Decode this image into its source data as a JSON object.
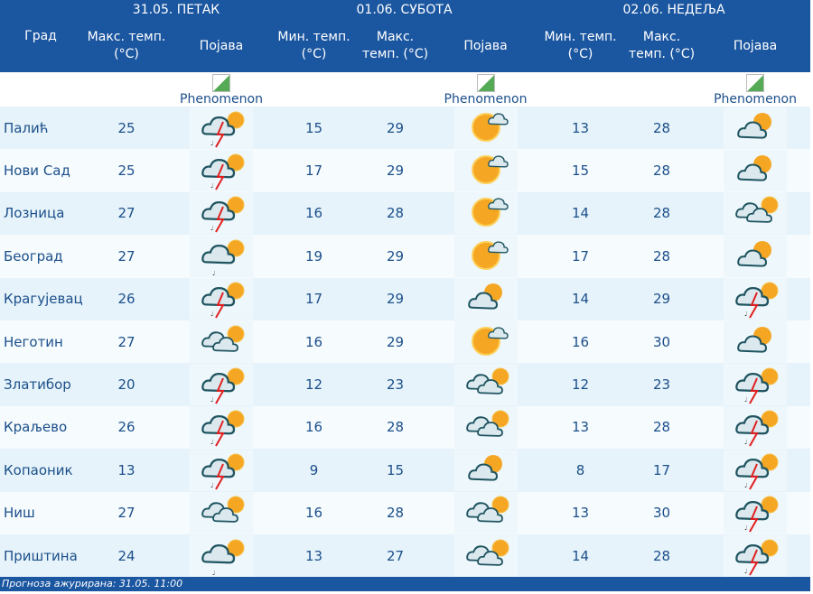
{
  "header": {
    "city": "Град",
    "max": "Макс. темп. (°C)",
    "min": "Мин. темп. (°C)",
    "phen": "Појава",
    "days": [
      "31.05. ПЕТАК",
      "01.06. СУБОТА",
      "02.06. НЕДЕЉА"
    ]
  },
  "image_alt": "Phenomenon",
  "rows": [
    {
      "city": "Палић",
      "d1max": "25",
      "d1": "thunderstorm",
      "d2min": "15",
      "d2max": "29",
      "d2": "sun-cloud",
      "d3min": "13",
      "d3max": "28",
      "d3": "partly-cloudy"
    },
    {
      "city": "Нови Сад",
      "d1max": "25",
      "d1": "thunderstorm",
      "d2min": "17",
      "d2max": "29",
      "d2": "sun-cloud",
      "d3min": "15",
      "d3max": "28",
      "d3": "partly-cloudy"
    },
    {
      "city": "Лозница",
      "d1max": "27",
      "d1": "thunderstorm",
      "d2min": "16",
      "d2max": "28",
      "d2": "sun-cloud",
      "d3min": "14",
      "d3max": "28",
      "d3": "cloudy"
    },
    {
      "city": "Београд",
      "d1max": "27",
      "d1": "showers",
      "d2min": "19",
      "d2max": "29",
      "d2": "sun-cloud",
      "d3min": "17",
      "d3max": "28",
      "d3": "partly-cloudy"
    },
    {
      "city": "Крагујевац",
      "d1max": "26",
      "d1": "thunderstorm",
      "d2min": "17",
      "d2max": "29",
      "d2": "partly-cloudy",
      "d3min": "14",
      "d3max": "29",
      "d3": "thunderstorm"
    },
    {
      "city": "Неготин",
      "d1max": "27",
      "d1": "cloudy",
      "d2min": "16",
      "d2max": "29",
      "d2": "sun-cloud",
      "d3min": "16",
      "d3max": "30",
      "d3": "partly-cloudy"
    },
    {
      "city": "Златибор",
      "d1max": "20",
      "d1": "thunderstorm",
      "d2min": "12",
      "d2max": "23",
      "d2": "cloudy",
      "d3min": "12",
      "d3max": "23",
      "d3": "thunderstorm"
    },
    {
      "city": "Краљево",
      "d1max": "26",
      "d1": "thunderstorm",
      "d2min": "16",
      "d2max": "28",
      "d2": "cloudy",
      "d3min": "13",
      "d3max": "28",
      "d3": "thunderstorm"
    },
    {
      "city": "Копаоник",
      "d1max": "13",
      "d1": "thunderstorm",
      "d2min": "9",
      "d2max": "15",
      "d2": "partly-cloudy",
      "d3min": "8",
      "d3max": "17",
      "d3": "thunderstorm"
    },
    {
      "city": "Ниш",
      "d1max": "27",
      "d1": "cloudy",
      "d2min": "16",
      "d2max": "28",
      "d2": "cloudy",
      "d3min": "13",
      "d3max": "30",
      "d3": "thunderstorm"
    },
    {
      "city": "Приштина",
      "d1max": "24",
      "d1": "showers",
      "d2min": "13",
      "d2max": "27",
      "d2": "cloudy",
      "d3min": "14",
      "d3max": "28",
      "d3": "thunderstorm"
    }
  ],
  "footer": "Прогноза ажурирана:  31.05. 11:00",
  "colors": {
    "header": "#1b56a0",
    "text": "#1b4f8a",
    "row": "#e6f3fa"
  }
}
